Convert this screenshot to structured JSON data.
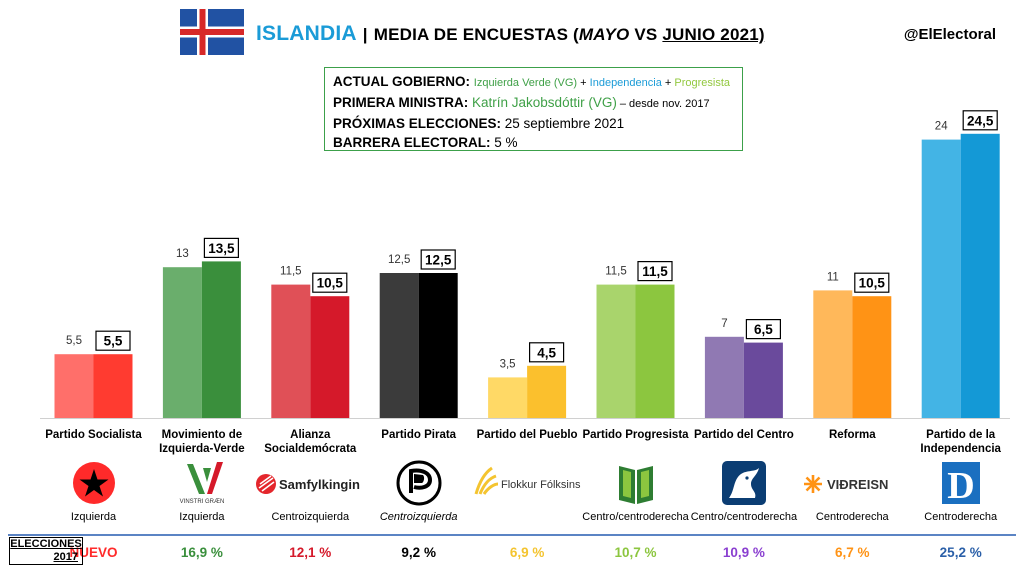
{
  "header": {
    "country": "ISLANDIA",
    "separator": "|",
    "title_part1": "MEDIA DE ENCUESTAS (",
    "title_may": "MAYO",
    "title_vs": " VS ",
    "title_june": "JUNIO 2021)",
    "handle": "@ElElectoral"
  },
  "flag_colors": {
    "blue": "#2152a3",
    "white": "#ffffff",
    "red": "#d72828"
  },
  "info": {
    "gov_label": "ACTUAL GOBIERNO:",
    "gov_vg": "Izquierda Verde (VG)",
    "plus1": " + ",
    "gov_ind": "Independencia",
    "plus2": " + ",
    "gov_prog": "Progresista",
    "pm_label": "PRIMERA MINISTRA:",
    "pm_name": "Katrín Jakobsdóttir (VG)",
    "pm_since": " – desde nov. 2017",
    "next_label": "PRÓXIMAS ELECCIONES:",
    "next_date": " 25 septiembre 2021",
    "barrier_label": "BARRERA ELECTORAL:",
    "barrier_value": " 5 %"
  },
  "chart_data": {
    "type": "bar",
    "categories": [
      "Partido Socialista",
      "Movimiento de Izquierda-Verde",
      "Alianza Socialdemócrata",
      "Partido Pirata",
      "Partido del Pueblo",
      "Partido Progresista",
      "Partido del Centro",
      "Reforma",
      "Partido de la Independencia"
    ],
    "series": [
      {
        "name": "MAYO",
        "values": [
          5.5,
          13,
          11.5,
          12.5,
          3.5,
          11.5,
          7,
          11,
          24
        ],
        "labels": [
          "5,5",
          "13",
          "11,5",
          "12,5",
          "3,5",
          "11,5",
          "7",
          "11",
          "24"
        ]
      },
      {
        "name": "JUNIO 2021",
        "values": [
          5.5,
          13.5,
          10.5,
          12.5,
          4.5,
          11.5,
          6.5,
          10.5,
          24.5
        ],
        "labels": [
          "5,5",
          "13,5",
          "10,5",
          "12,5",
          "4,5",
          "11,5",
          "6,5",
          "10,5",
          "24,5"
        ]
      }
    ],
    "colors_may": [
      "#ff6f6a",
      "#6aae6c",
      "#e05057",
      "#3b3b3b",
      "#ffd966",
      "#a9d46c",
      "#9079b3",
      "#ffb85a",
      "#43b4e5"
    ],
    "colors_june": [
      "#ff3b30",
      "#3a8f3c",
      "#d5192a",
      "#000000",
      "#fbc02d",
      "#8cc63f",
      "#6a4a9c",
      "#ff9315",
      "#1499d6"
    ],
    "ylim": [
      0,
      26
    ],
    "grid": false
  },
  "parties": [
    {
      "name_l1": "Partido Socialista",
      "name_l2": "",
      "logo": "socialist-star-logo",
      "ideology": "Izquierda",
      "italic": false,
      "elect2017": "NUEVO",
      "elect_color": "#ff2a2a"
    },
    {
      "name_l1": "Movimiento de",
      "name_l2": "Izquierda-Verde",
      "logo": "vinstri-graen-logo",
      "logo_text": "VINSTRI GRÆN",
      "ideology": "Izquierda",
      "italic": false,
      "elect2017": "16,9 %",
      "elect_color": "#3a8f3c"
    },
    {
      "name_l1": "Alianza",
      "name_l2": "Socialdemócrata",
      "logo": "samfylkingin-logo",
      "logo_text": "Samfylkingin",
      "ideology": "Centroizquierda",
      "italic": false,
      "elect2017": "12,1 %",
      "elect_color": "#d5192a"
    },
    {
      "name_l1": "Partido Pirata",
      "name_l2": "",
      "logo": "pirate-flag-logo",
      "ideology": "Centroizquierda",
      "italic": true,
      "elect2017": "9,2 %",
      "elect_color": "#000000"
    },
    {
      "name_l1": "Partido del Pueblo",
      "name_l2": "",
      "logo": "flokkur-folksins-logo",
      "logo_text": "Flokkur Fólksins",
      "ideology": "",
      "italic": false,
      "elect2017": "6,9 %",
      "elect_color": "#f4c430"
    },
    {
      "name_l1": "Partido Progresista",
      "name_l2": "",
      "logo": "progressive-book-logo",
      "ideology": "Centro/centroderecha",
      "italic": false,
      "elect2017": "10,7 %",
      "elect_color": "#8cc63f"
    },
    {
      "name_l1": "Partido del Centro",
      "name_l2": "",
      "logo": "centre-horse-logo",
      "ideology": "Centro/centroderecha",
      "italic": false,
      "elect2017": "10,9 %",
      "elect_color": "#8a3fd0"
    },
    {
      "name_l1": "Reforma",
      "name_l2": "",
      "logo": "vidreisn-logo",
      "logo_text": "VIÐREISN",
      "ideology": "Centroderecha",
      "italic": false,
      "elect2017": "6,7 %",
      "elect_color": "#ff9315"
    },
    {
      "name_l1": "Partido de la",
      "name_l2": "Independencia",
      "logo": "independence-d-logo",
      "logo_text": "D",
      "ideology": "Centroderecha",
      "italic": false,
      "elect2017": "25,2 %",
      "elect_color": "#2a5fa8"
    }
  ],
  "elections": {
    "label_l1": "ELECCIONES",
    "label_l2": "2017"
  }
}
